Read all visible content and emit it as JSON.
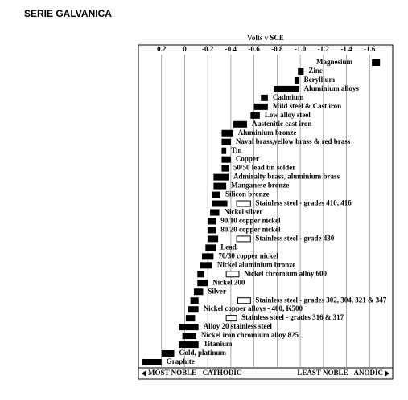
{
  "chart_data": {
    "type": "range-bar",
    "title": "SERIE GALVANICA",
    "x_label": "Volts v SCE",
    "xlim": [
      0.4,
      -1.8
    ],
    "xticks": [
      0.2,
      0,
      -0.2,
      -0.4,
      -0.6,
      -0.8,
      {
        "value": -1,
        "label": "-1.0"
      },
      -1.2,
      -1.4,
      -1.6
    ],
    "grid": true,
    "color": "#000000",
    "categories": [
      "Magnesium",
      "Zinc",
      "Beryllium",
      "Aluminium alloys",
      "Cadmium",
      "Mild steel & Cast iron",
      "Low alloy steel",
      "Austenitic cast iron",
      "Aluminium bronze",
      "Naval brass,yellow brass & red brass",
      "Tin",
      "Copper",
      "50/50 lead tin solder",
      "Admiralty brass, aluminium brass",
      "Manganese bronze",
      "Silicon bronze",
      "Stainless steel  - grades 410, 416",
      "Nickel silver",
      "90/10 copper nickel",
      "80/20 copper nickel",
      "Stainless steel  - grade 430",
      "Lead",
      "70/30 copper nickel",
      "Nickel aluminium bronze",
      "Nickel chromium alloy 600",
      "Nickel 200",
      "Silver",
      "Stainless steel - grades 302, 304, 321 & 347",
      "Nickel copper  alloys - 400, K500",
      "Stainless steel - grades 316 & 317",
      "Alloy 20 stainless steel",
      "Nickel iron chromium alloy  825",
      "Titanium",
      "Gold, platinum",
      "Graphite"
    ],
    "ranges": [
      [
        -1.62,
        -1.69
      ],
      [
        -0.98,
        -1.03
      ],
      [
        -0.95,
        -0.99
      ],
      [
        -0.77,
        -0.99
      ],
      [
        -0.66,
        -0.72
      ],
      [
        -0.6,
        -0.72
      ],
      [
        -0.57,
        -0.65
      ],
      [
        -0.42,
        -0.54
      ],
      [
        -0.32,
        -0.42
      ],
      [
        -0.32,
        -0.4
      ],
      [
        -0.32,
        -0.36
      ],
      [
        -0.32,
        -0.4
      ],
      [
        -0.32,
        -0.38
      ],
      [
        -0.25,
        -0.38
      ],
      [
        -0.25,
        -0.36
      ],
      [
        -0.24,
        -0.31
      ],
      [
        -0.24,
        -0.37
      ],
      [
        -0.22,
        -0.3
      ],
      [
        -0.2,
        -0.27
      ],
      [
        -0.2,
        -0.27
      ],
      [
        -0.2,
        -0.29
      ],
      [
        -0.18,
        -0.27
      ],
      [
        -0.15,
        -0.25
      ],
      [
        -0.13,
        -0.24
      ],
      [
        -0.11,
        -0.17
      ],
      [
        -0.11,
        -0.2
      ],
      [
        -0.08,
        -0.16
      ],
      [
        -0.05,
        -0.12
      ],
      [
        -0.03,
        -0.12
      ],
      [
        -0.01,
        -0.09
      ],
      [
        0.05,
        -0.12
      ],
      [
        0.02,
        -0.1
      ],
      [
        0.05,
        -0.12
      ],
      [
        0.2,
        0.09
      ],
      [
        0.37,
        0.2
      ]
    ],
    "active_ranges": [
      null,
      null,
      null,
      null,
      null,
      null,
      null,
      null,
      null,
      null,
      null,
      null,
      null,
      null,
      null,
      null,
      [
        -0.45,
        -0.57
      ],
      null,
      null,
      null,
      [
        -0.45,
        -0.57
      ],
      null,
      null,
      null,
      [
        -0.36,
        -0.47
      ],
      null,
      null,
      [
        -0.46,
        -0.57
      ],
      null,
      [
        -0.36,
        -0.45
      ],
      null,
      null,
      null,
      null,
      null
    ],
    "footer_left": "MOST NOBLE - CATHODIC",
    "footer_right": "LEAST NOBLE - ANODIC"
  }
}
